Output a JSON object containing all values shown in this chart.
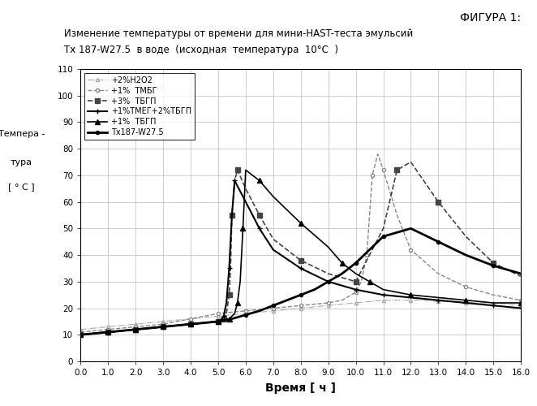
{
  "title_line1": "Изменение температуры от времени для мини-HAST-теста эмульсий",
  "title_line2": "Тх 187-W27.5  в воде  (исходная  температура  10°C  )",
  "figure_label": "ФИГУРА 1:",
  "xlabel": "Время [ ч ]",
  "ylabel_line1": "Темпера -",
  "ylabel_line2": "тура",
  "ylabel_line3": "[ ° C ]",
  "xmin": 0.0,
  "xmax": 16.0,
  "ymin": 0,
  "ymax": 110,
  "xticks": [
    0.0,
    1.0,
    2.0,
    3.0,
    4.0,
    5.0,
    6.0,
    7.0,
    8.0,
    9.0,
    10.0,
    11.0,
    12.0,
    13.0,
    14.0,
    15.0,
    16.0
  ],
  "yticks": [
    0,
    10,
    20,
    30,
    40,
    50,
    60,
    70,
    80,
    90,
    100,
    110
  ],
  "legend_entries": [
    "Тх187-W27.5",
    "+1%  ТБГП",
    "+3%  ТБГП",
    "+1%  ТМБГ",
    "+1%ТМЕГ+2%ТБГП",
    "+2%H2O2"
  ],
  "series": {
    "Tx187": {
      "x": [
        0.0,
        0.5,
        1.0,
        1.5,
        2.0,
        2.5,
        3.0,
        3.5,
        4.0,
        4.5,
        5.0,
        5.5,
        6.0,
        6.5,
        7.0,
        7.5,
        8.0,
        8.5,
        9.0,
        9.5,
        10.0,
        10.5,
        11.0,
        12.0,
        13.0,
        14.0,
        15.0,
        16.0
      ],
      "y": [
        10,
        10.5,
        11,
        11.5,
        12,
        12.5,
        13,
        13.5,
        14,
        14.5,
        15,
        16,
        17.5,
        19,
        21,
        23,
        25,
        27,
        30,
        33,
        37,
        42,
        47,
        50,
        45,
        40,
        36,
        33
      ],
      "color": "#000000",
      "marker": "o",
      "markersize": 3,
      "linestyle": "-",
      "linewidth": 2.0,
      "markerfacecolor": "#000000"
    },
    "TBGP1": {
      "x": [
        0.0,
        0.5,
        1.0,
        1.5,
        2.0,
        2.5,
        3.0,
        3.5,
        4.0,
        4.5,
        5.0,
        5.2,
        5.4,
        5.6,
        5.7,
        5.8,
        5.9,
        6.0,
        6.5,
        7.0,
        8.0,
        9.0,
        9.5,
        10.0,
        10.5,
        11.0,
        12.0,
        13.0,
        14.0,
        15.0,
        16.0
      ],
      "y": [
        10,
        10.5,
        11,
        11.5,
        12,
        12.5,
        13,
        13.5,
        14,
        14.5,
        15,
        15.5,
        16,
        18,
        22,
        30,
        50,
        72,
        68,
        62,
        52,
        43,
        37,
        33,
        30,
        27,
        25,
        24,
        23,
        22,
        22
      ],
      "color": "#000000",
      "marker": "^",
      "markersize": 4,
      "linestyle": "-",
      "linewidth": 1.2,
      "markerfacecolor": "#000000"
    },
    "TBGP3": {
      "x": [
        0.0,
        0.5,
        1.0,
        1.5,
        2.0,
        2.5,
        3.0,
        3.5,
        4.0,
        4.5,
        5.0,
        5.1,
        5.2,
        5.3,
        5.4,
        5.45,
        5.5,
        5.6,
        5.7,
        6.0,
        6.5,
        7.0,
        8.0,
        9.0,
        10.0,
        11.0,
        11.5,
        12.0,
        13.0,
        14.0,
        15.0,
        16.0
      ],
      "y": [
        10,
        10.5,
        11,
        11.5,
        12,
        12.5,
        13,
        13.5,
        14,
        14.5,
        15,
        15.3,
        16,
        18,
        25,
        35,
        55,
        68,
        72,
        65,
        55,
        46,
        38,
        33,
        30,
        50,
        72,
        75,
        60,
        47,
        37,
        32
      ],
      "color": "#444444",
      "marker": "s",
      "markersize": 4,
      "linestyle": "--",
      "linewidth": 1.2,
      "markerfacecolor": "#444444"
    },
    "TMBG1": {
      "x": [
        0.0,
        0.5,
        1.0,
        1.5,
        2.0,
        2.5,
        3.0,
        3.5,
        4.0,
        4.5,
        5.0,
        5.5,
        6.0,
        6.5,
        7.0,
        7.5,
        8.0,
        8.5,
        9.0,
        9.5,
        10.0,
        10.2,
        10.4,
        10.5,
        10.6,
        10.8,
        11.0,
        11.5,
        12.0,
        13.0,
        14.0,
        15.0,
        16.0
      ],
      "y": [
        11,
        11.5,
        12,
        12.5,
        13,
        13.5,
        14,
        15,
        16,
        17,
        18,
        18.5,
        19,
        19.5,
        20,
        20.5,
        21,
        21.5,
        22,
        23,
        26,
        30,
        40,
        55,
        70,
        78,
        72,
        55,
        42,
        33,
        28,
        25,
        23
      ],
      "color": "#888888",
      "marker": "o",
      "markersize": 3,
      "linestyle": "--",
      "linewidth": 1.0,
      "markerfacecolor": "white"
    },
    "TMBG_TBGP": {
      "x": [
        0.0,
        0.5,
        1.0,
        1.5,
        2.0,
        2.5,
        3.0,
        3.5,
        4.0,
        4.5,
        5.0,
        5.1,
        5.2,
        5.3,
        5.4,
        5.5,
        5.6,
        6.0,
        6.5,
        7.0,
        8.0,
        9.0,
        10.0,
        10.5,
        11.0,
        12.0,
        13.0,
        14.0,
        15.0,
        16.0
      ],
      "y": [
        10,
        10.5,
        11,
        11.5,
        12,
        12.5,
        13,
        13.5,
        14,
        14.5,
        15,
        15.5,
        17,
        22,
        35,
        55,
        68,
        60,
        50,
        42,
        35,
        30,
        27,
        26,
        25,
        24,
        23,
        22,
        21,
        20
      ],
      "color": "#000000",
      "marker": "+",
      "markersize": 5,
      "linestyle": "-",
      "linewidth": 1.5,
      "markerfacecolor": "#000000"
    },
    "H2O2": {
      "x": [
        0.0,
        0.5,
        1.0,
        1.5,
        2.0,
        2.5,
        3.0,
        3.5,
        4.0,
        4.5,
        5.0,
        5.5,
        6.0,
        6.5,
        7.0,
        7.5,
        8.0,
        8.5,
        9.0,
        9.5,
        10.0,
        10.5,
        11.0,
        11.5,
        12.0,
        12.5,
        13.0,
        13.5,
        14.0,
        14.5,
        15.0,
        15.5,
        16.0
      ],
      "y": [
        12,
        12.5,
        13,
        13.5,
        14,
        14.5,
        15,
        15.5,
        16,
        16.5,
        17,
        17.5,
        18,
        18.5,
        19,
        19.5,
        20,
        20.5,
        21,
        21.5,
        22,
        22.5,
        23,
        23,
        23,
        23,
        22.5,
        22.5,
        22,
        22,
        22,
        21.5,
        21
      ],
      "color": "#aaaaaa",
      "marker": "^",
      "markersize": 3,
      "linestyle": "-.",
      "linewidth": 0.8,
      "markerfacecolor": "white"
    }
  }
}
